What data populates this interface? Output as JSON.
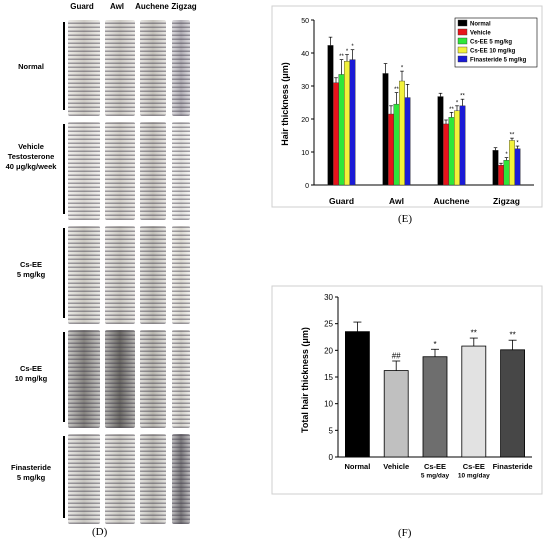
{
  "panel_d": {
    "label": "(D)",
    "columns": [
      "Guard",
      "Awl",
      "Auchene",
      "Zigzag"
    ],
    "rows": [
      {
        "lines": [
          "Normal"
        ]
      },
      {
        "lines": [
          "Vehicle",
          "Testosterone",
          "40 μg/kg/week"
        ]
      },
      {
        "lines": [
          "Cs-EE",
          "5 mg/kg"
        ]
      },
      {
        "lines": [
          "Cs-EE",
          "10 mg/kg"
        ]
      },
      {
        "lines": [
          "Finasteride",
          "5 mg/kg"
        ]
      }
    ]
  },
  "colors": {
    "normal": "#000000",
    "vehicle": "#e8141b",
    "cs5": "#2ee63a",
    "cs10": "#f2f23a",
    "finasteride": "#1b1bd6"
  },
  "chart_data": [
    {
      "panel_label": "(E)",
      "type": "bar",
      "ylabel": "Hair thickness (μm)",
      "ylim": [
        0,
        50
      ],
      "yticks": [
        0,
        10,
        20,
        30,
        40,
        50
      ],
      "categories": [
        "Guard",
        "Awl",
        "Auchene",
        "Zigzag"
      ],
      "legend_position": "top-right",
      "series": [
        {
          "name": "Normal",
          "color": "#000000",
          "values": [
            42.3,
            33.8,
            26.8,
            10.5
          ],
          "errors": [
            2.5,
            3.0,
            1.0,
            0.8
          ],
          "marks": [
            "",
            "",
            "",
            ""
          ]
        },
        {
          "name": "Vehicle",
          "color": "#e8141b",
          "values": [
            31.0,
            21.5,
            18.5,
            6.0
          ],
          "errors": [
            1.5,
            2.5,
            1.2,
            0.6
          ],
          "marks": [
            "",
            "",
            "",
            ""
          ]
        },
        {
          "name": "Cs-EE 5 mg/kg",
          "color": "#2ee63a",
          "values": [
            33.5,
            24.5,
            20.5,
            7.5
          ],
          "errors": [
            4.5,
            3.5,
            1.5,
            0.8
          ],
          "marks": [
            "**",
            "**",
            "**",
            "*"
          ]
        },
        {
          "name": "Cs-EE 10 mg/kg",
          "color": "#f2f23a",
          "values": [
            37.5,
            31.5,
            22.5,
            13.5
          ],
          "errors": [
            2.0,
            3.0,
            1.5,
            0.7
          ],
          "marks": [
            "*",
            "*",
            "*",
            "**"
          ]
        },
        {
          "name": "Finasteride 5 mg/kg",
          "color": "#1b1bd6",
          "values": [
            38.0,
            26.5,
            24.0,
            11.0
          ],
          "errors": [
            3.0,
            4.0,
            2.0,
            0.8
          ],
          "marks": [
            "*",
            "",
            "**",
            "*"
          ]
        }
      ]
    },
    {
      "panel_label": "(F)",
      "type": "bar",
      "ylabel": "Total hair thickness (μm)",
      "ylim": [
        0,
        30
      ],
      "yticks": [
        0,
        5,
        10,
        15,
        20,
        25,
        30
      ],
      "categories": [
        {
          "lines": [
            "Normal"
          ]
        },
        {
          "lines": [
            "Vehicle"
          ]
        },
        {
          "lines": [
            "Cs-EE",
            "5 mg/day"
          ]
        },
        {
          "lines": [
            "Cs-EE",
            "10 mg/day"
          ]
        },
        {
          "lines": [
            "Finasteride"
          ]
        }
      ],
      "values": [
        23.5,
        16.2,
        18.8,
        20.8,
        20.1
      ],
      "errors": [
        1.8,
        1.8,
        1.4,
        1.5,
        1.8
      ],
      "marks": [
        "",
        "##",
        "*",
        "**",
        "**"
      ],
      "colors": [
        "#000000",
        "#c0c0c0",
        "#6e6e6e",
        "#e2e2e2",
        "#474747"
      ]
    }
  ]
}
